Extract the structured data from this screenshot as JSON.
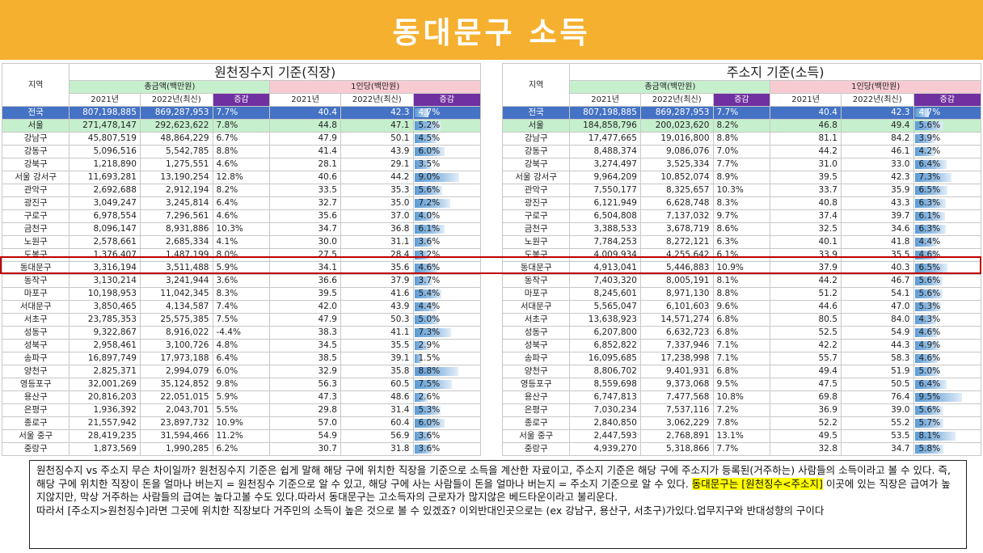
{
  "title": "동대문구 소득",
  "headers": {
    "region": "지역",
    "total": "총금액(백만원)",
    "per_capita": "1인당(백만원)",
    "year_2021": "2021년",
    "year_2022": "2022년(최신)",
    "change": "증감"
  },
  "left_table": {
    "title": "원천징수지 기준(직장)",
    "rows": [
      {
        "name": "전국",
        "t21": "807,198,885",
        "t22": "869,287,953",
        "tc": "7.7%",
        "p21": "40.4",
        "p22": "42.3",
        "pc": "4.7%",
        "pv": 4.7
      },
      {
        "name": "서울",
        "t21": "271,478,147",
        "t22": "292,623,622",
        "tc": "7.8%",
        "p21": "44.8",
        "p22": "47.1",
        "pc": "5.2%",
        "pv": 5.2
      },
      {
        "name": "강남구",
        "t21": "45,807,519",
        "t22": "48,864,229",
        "tc": "6.7%",
        "p21": "47.9",
        "p22": "50.1",
        "pc": "4.5%",
        "pv": 4.5
      },
      {
        "name": "강동구",
        "t21": "5,096,516",
        "t22": "5,542,785",
        "tc": "8.8%",
        "p21": "41.4",
        "p22": "43.9",
        "pc": "6.0%",
        "pv": 6.0
      },
      {
        "name": "강북구",
        "t21": "1,218,890",
        "t22": "1,275,551",
        "tc": "4.6%",
        "p21": "28.1",
        "p22": "29.1",
        "pc": "3.5%",
        "pv": 3.5
      },
      {
        "name": "서울 강서구",
        "t21": "11,693,281",
        "t22": "13,190,254",
        "tc": "12.8%",
        "p21": "40.6",
        "p22": "44.2",
        "pc": "9.0%",
        "pv": 9.0
      },
      {
        "name": "관악구",
        "t21": "2,692,688",
        "t22": "2,912,194",
        "tc": "8.2%",
        "p21": "33.5",
        "p22": "35.3",
        "pc": "5.6%",
        "pv": 5.6
      },
      {
        "name": "광진구",
        "t21": "3,049,247",
        "t22": "3,245,814",
        "tc": "6.4%",
        "p21": "32.7",
        "p22": "35.0",
        "pc": "7.2%",
        "pv": 7.2
      },
      {
        "name": "구로구",
        "t21": "6,978,554",
        "t22": "7,296,561",
        "tc": "4.6%",
        "p21": "35.6",
        "p22": "37.0",
        "pc": "4.0%",
        "pv": 4.0
      },
      {
        "name": "금천구",
        "t21": "8,096,147",
        "t22": "8,931,886",
        "tc": "10.3%",
        "p21": "34.7",
        "p22": "36.8",
        "pc": "6.1%",
        "pv": 6.1
      },
      {
        "name": "노원구",
        "t21": "2,578,661",
        "t22": "2,685,334",
        "tc": "4.1%",
        "p21": "30.0",
        "p22": "31.1",
        "pc": "3.6%",
        "pv": 3.6
      },
      {
        "name": "도봉구",
        "t21": "1,376,407",
        "t22": "1,487,199",
        "tc": "8.0%",
        "p21": "27.5",
        "p22": "28.4",
        "pc": "3.2%",
        "pv": 3.2
      },
      {
        "name": "동대문구",
        "t21": "3,316,194",
        "t22": "3,511,488",
        "tc": "5.9%",
        "p21": "34.1",
        "p22": "35.6",
        "pc": "4.6%",
        "pv": 4.6
      },
      {
        "name": "동작구",
        "t21": "3,130,214",
        "t22": "3,241,944",
        "tc": "3.6%",
        "p21": "36.6",
        "p22": "37.9",
        "pc": "3.7%",
        "pv": 3.7
      },
      {
        "name": "마포구",
        "t21": "10,198,953",
        "t22": "11,042,345",
        "tc": "8.3%",
        "p21": "39.5",
        "p22": "41.6",
        "pc": "5.4%",
        "pv": 5.4
      },
      {
        "name": "서대문구",
        "t21": "3,850,465",
        "t22": "4,134,587",
        "tc": "7.4%",
        "p21": "42.0",
        "p22": "43.9",
        "pc": "4.4%",
        "pv": 4.4
      },
      {
        "name": "서초구",
        "t21": "23,785,353",
        "t22": "25,575,385",
        "tc": "7.5%",
        "p21": "47.9",
        "p22": "50.3",
        "pc": "5.0%",
        "pv": 5.0
      },
      {
        "name": "성동구",
        "t21": "9,322,867",
        "t22": "8,916,022",
        "tc": "-4.4%",
        "p21": "38.3",
        "p22": "41.1",
        "pc": "7.3%",
        "pv": 7.3
      },
      {
        "name": "성북구",
        "t21": "2,958,461",
        "t22": "3,100,726",
        "tc": "4.8%",
        "p21": "34.5",
        "p22": "35.5",
        "pc": "2.9%",
        "pv": 2.9
      },
      {
        "name": "송파구",
        "t21": "16,897,749",
        "t22": "17,973,188",
        "tc": "6.4%",
        "p21": "38.5",
        "p22": "39.1",
        "pc": "1.5%",
        "pv": 1.5
      },
      {
        "name": "양천구",
        "t21": "2,825,371",
        "t22": "2,994,079",
        "tc": "6.0%",
        "p21": "32.9",
        "p22": "35.8",
        "pc": "8.8%",
        "pv": 8.8
      },
      {
        "name": "영등포구",
        "t21": "32,001,269",
        "t22": "35,124,852",
        "tc": "9.8%",
        "p21": "56.3",
        "p22": "60.5",
        "pc": "7.5%",
        "pv": 7.5
      },
      {
        "name": "용산구",
        "t21": "20,816,203",
        "t22": "22,051,015",
        "tc": "5.9%",
        "p21": "47.3",
        "p22": "48.6",
        "pc": "2.6%",
        "pv": 2.6
      },
      {
        "name": "은평구",
        "t21": "1,936,392",
        "t22": "2,043,701",
        "tc": "5.5%",
        "p21": "29.8",
        "p22": "31.4",
        "pc": "5.3%",
        "pv": 5.3
      },
      {
        "name": "종로구",
        "t21": "21,557,942",
        "t22": "23,897,732",
        "tc": "10.9%",
        "p21": "57.0",
        "p22": "60.4",
        "pc": "6.0%",
        "pv": 6.0
      },
      {
        "name": "서울 중구",
        "t21": "28,419,235",
        "t22": "31,594,466",
        "tc": "11.2%",
        "p21": "54.9",
        "p22": "56.9",
        "pc": "3.6%",
        "pv": 3.6
      },
      {
        "name": "중랑구",
        "t21": "1,873,569",
        "t22": "1,990,285",
        "tc": "6.2%",
        "p21": "30.7",
        "p22": "31.8",
        "pc": "3.6%",
        "pv": 3.6
      }
    ]
  },
  "right_table": {
    "title": "주소지 기준(소득)",
    "rows": [
      {
        "name": "전국",
        "t21": "807,198,885",
        "t22": "869,287,953",
        "tc": "7.7%",
        "p21": "40.4",
        "p22": "42.3",
        "pc": "4.7%",
        "pv": 4.7
      },
      {
        "name": "서울",
        "t21": "184,858,796",
        "t22": "200,023,620",
        "tc": "8.2%",
        "p21": "46.8",
        "p22": "49.4",
        "pc": "5.6%",
        "pv": 5.6
      },
      {
        "name": "강남구",
        "t21": "17,477,665",
        "t22": "19,016,800",
        "tc": "8.8%",
        "p21": "81.1",
        "p22": "84.2",
        "pc": "3.9%",
        "pv": 3.9
      },
      {
        "name": "강동구",
        "t21": "8,488,374",
        "t22": "9,086,076",
        "tc": "7.0%",
        "p21": "44.2",
        "p22": "46.1",
        "pc": "4.2%",
        "pv": 4.2
      },
      {
        "name": "강북구",
        "t21": "3,274,497",
        "t22": "3,525,334",
        "tc": "7.7%",
        "p21": "31.0",
        "p22": "33.0",
        "pc": "6.4%",
        "pv": 6.4
      },
      {
        "name": "서울 강서구",
        "t21": "9,964,209",
        "t22": "10,852,074",
        "tc": "8.9%",
        "p21": "39.5",
        "p22": "42.3",
        "pc": "7.3%",
        "pv": 7.3
      },
      {
        "name": "관악구",
        "t21": "7,550,177",
        "t22": "8,325,657",
        "tc": "10.3%",
        "p21": "33.7",
        "p22": "35.9",
        "pc": "6.5%",
        "pv": 6.5
      },
      {
        "name": "광진구",
        "t21": "6,121,949",
        "t22": "6,628,748",
        "tc": "8.3%",
        "p21": "40.8",
        "p22": "43.3",
        "pc": "6.3%",
        "pv": 6.3
      },
      {
        "name": "구로구",
        "t21": "6,504,808",
        "t22": "7,137,032",
        "tc": "9.7%",
        "p21": "37.4",
        "p22": "39.7",
        "pc": "6.1%",
        "pv": 6.1
      },
      {
        "name": "금천구",
        "t21": "3,388,533",
        "t22": "3,678,719",
        "tc": "8.6%",
        "p21": "32.5",
        "p22": "34.6",
        "pc": "6.3%",
        "pv": 6.3
      },
      {
        "name": "노원구",
        "t21": "7,784,253",
        "t22": "8,272,121",
        "tc": "6.3%",
        "p21": "40.1",
        "p22": "41.8",
        "pc": "4.4%",
        "pv": 4.4
      },
      {
        "name": "도봉구",
        "t21": "4,009,934",
        "t22": "4,255,642",
        "tc": "6.1%",
        "p21": "33.9",
        "p22": "35.5",
        "pc": "4.6%",
        "pv": 4.6
      },
      {
        "name": "동대문구",
        "t21": "4,913,041",
        "t22": "5,446,883",
        "tc": "10.9%",
        "p21": "37.9",
        "p22": "40.3",
        "pc": "6.5%",
        "pv": 6.5
      },
      {
        "name": "동작구",
        "t21": "7,403,320",
        "t22": "8,005,191",
        "tc": "8.1%",
        "p21": "44.2",
        "p22": "46.7",
        "pc": "5.6%",
        "pv": 5.6
      },
      {
        "name": "마포구",
        "t21": "8,245,601",
        "t22": "8,971,130",
        "tc": "8.8%",
        "p21": "51.2",
        "p22": "54.1",
        "pc": "5.6%",
        "pv": 5.6
      },
      {
        "name": "서대문구",
        "t21": "5,565,047",
        "t22": "6,101,603",
        "tc": "9.6%",
        "p21": "44.6",
        "p22": "47.0",
        "pc": "5.3%",
        "pv": 5.3
      },
      {
        "name": "서초구",
        "t21": "13,638,923",
        "t22": "14,571,274",
        "tc": "6.8%",
        "p21": "80.5",
        "p22": "84.0",
        "pc": "4.3%",
        "pv": 4.3
      },
      {
        "name": "성동구",
        "t21": "6,207,800",
        "t22": "6,632,723",
        "tc": "6.8%",
        "p21": "52.5",
        "p22": "54.9",
        "pc": "4.6%",
        "pv": 4.6
      },
      {
        "name": "성북구",
        "t21": "6,852,822",
        "t22": "7,337,946",
        "tc": "7.1%",
        "p21": "42.2",
        "p22": "44.3",
        "pc": "4.9%",
        "pv": 4.9
      },
      {
        "name": "송파구",
        "t21": "16,095,685",
        "t22": "17,238,998",
        "tc": "7.1%",
        "p21": "55.7",
        "p22": "58.3",
        "pc": "4.6%",
        "pv": 4.6
      },
      {
        "name": "양천구",
        "t21": "8,806,702",
        "t22": "9,401,931",
        "tc": "6.8%",
        "p21": "49.4",
        "p22": "51.9",
        "pc": "5.0%",
        "pv": 5.0
      },
      {
        "name": "영등포구",
        "t21": "8,559,698",
        "t22": "9,373,068",
        "tc": "9.5%",
        "p21": "47.5",
        "p22": "50.5",
        "pc": "6.4%",
        "pv": 6.4
      },
      {
        "name": "용산구",
        "t21": "6,747,813",
        "t22": "7,477,568",
        "tc": "10.8%",
        "p21": "69.8",
        "p22": "76.4",
        "pc": "9.5%",
        "pv": 9.5
      },
      {
        "name": "은평구",
        "t21": "7,030,234",
        "t22": "7,537,116",
        "tc": "7.2%",
        "p21": "36.9",
        "p22": "39.0",
        "pc": "5.6%",
        "pv": 5.6
      },
      {
        "name": "종로구",
        "t21": "2,840,850",
        "t22": "3,062,229",
        "tc": "7.8%",
        "p21": "52.2",
        "p22": "55.2",
        "pc": "5.7%",
        "pv": 5.7
      },
      {
        "name": "서울 중구",
        "t21": "2,447,593",
        "t22": "2,768,891",
        "tc": "13.1%",
        "p21": "49.5",
        "p22": "53.5",
        "pc": "8.1%",
        "pv": 8.1
      },
      {
        "name": "중랑구",
        "t21": "4,939,270",
        "t22": "5,318,866",
        "tc": "7.7%",
        "p21": "32.8",
        "p22": "34.7",
        "pc": "5.8%",
        "pv": 5.8
      }
    ]
  },
  "note": {
    "line1": "원천징수지 vs 주소지 무슨 차이일까? 원천징수지 기준은 쉽게 말해 해당 구에 위치한 직장을 기준으로 소득을 계산한 자료이고, 주소지 기준은 해당 구에 주소지가 등록된(거주하는) 사람들의 소득이라고 볼 수 있다. 즉, 해당 구에 위치한 직장이 돈을 얼마나 버는지 = 원천징수 기준으로 알 수 있고, 해당 구에 사는 사람들이 돈을 얼마나 버는지 = 주소지 기준으로 알 수 있다.",
    "highlight": "동대문구는 [원천징수<주소지]",
    "line1_rest": " 이곳에 있는 직장은 급여가 높지않지만, 막상 거주하는 사람들의 급여는 높다고볼 수도 있다.따라서 동대문구는 고소득자의 근로자가 많지않은 베드타운이라고 불리운다.",
    "line2": "따라서 [주소지>원천징수]라면 그곳에 위치한 직장보다 거주민의 소득이 높은 것으로 볼 수 있겠죠? 이외반대인곳으로는 (ex 강남구, 용산구, 서초구)가있다.업무지구와 반대성향의 구이다"
  }
}
